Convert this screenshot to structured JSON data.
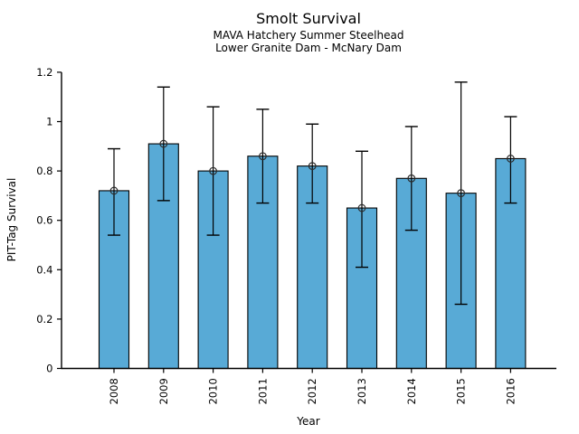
{
  "window": {
    "background_color": "#FFFFFF"
  },
  "chart_data": {
    "type": "bar",
    "title": "Smolt Survival",
    "subtitle_line1": "MAVA Hatchery Summer Steelhead",
    "subtitle_line2": "Lower Granite Dam - McNary Dam",
    "xlabel": "Year",
    "ylabel": "PIT-Tag Survival",
    "categories": [
      "2008",
      "2009",
      "2010",
      "2011",
      "2012",
      "2013",
      "2014",
      "2015",
      "2016"
    ],
    "series": [
      {
        "name": "PIT-Tag Survival",
        "values": [
          0.72,
          0.91,
          0.8,
          0.86,
          0.82,
          0.65,
          0.77,
          0.71,
          0.85
        ],
        "error_low": [
          0.54,
          0.68,
          0.54,
          0.67,
          0.67,
          0.41,
          0.56,
          0.26,
          0.67
        ],
        "error_high": [
          0.89,
          1.14,
          1.06,
          1.05,
          0.99,
          0.88,
          0.98,
          1.16,
          1.02
        ]
      }
    ],
    "ylim": [
      0,
      1.2
    ],
    "yticks": [
      0,
      0.2,
      0.4,
      0.6,
      0.8,
      1,
      1.2
    ],
    "ytick_labels": [
      "0",
      "0.2",
      "0.4",
      "0.6",
      "0.8",
      "1",
      "1.2"
    ],
    "grid": false,
    "legend": null,
    "bar_width_ratio": 0.6,
    "marker": "open-circle",
    "error_caps": true,
    "colors": {
      "bar_fill": "#58AAD6",
      "bar_edge": "#000000",
      "error_bar": "#000000",
      "marker_edge": "#2B2B2B",
      "axis": "#000000",
      "text": "#000000",
      "background": "#FFFFFF"
    }
  }
}
